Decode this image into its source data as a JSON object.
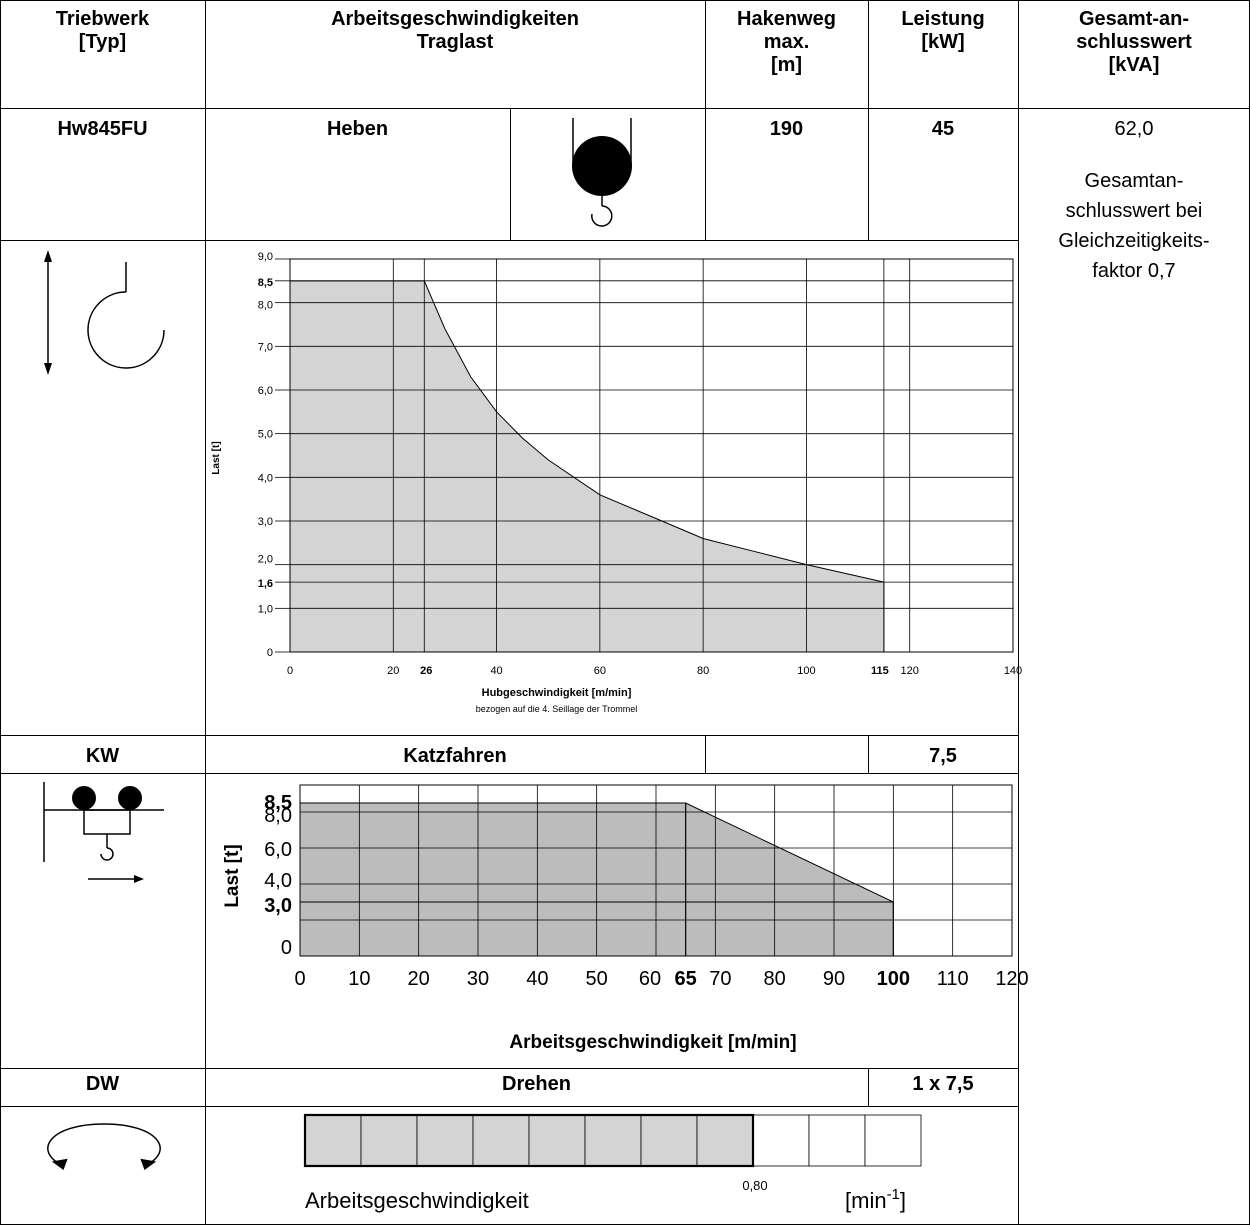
{
  "header": {
    "triebwerk": [
      "Triebwerk",
      "[Typ]"
    ],
    "arbeits": [
      "Arbeitsgeschwindigkeiten",
      "Traglast"
    ],
    "hakenweg": [
      "Hakenweg",
      "max.",
      "[m]"
    ],
    "leistung": [
      "Leistung",
      "[kW]"
    ],
    "gesamt": [
      "Gesamt-an-",
      "schlusswert",
      "[kVA]"
    ]
  },
  "hw": {
    "type": "Hw845FU",
    "label": "Heben",
    "hakenweg": "190",
    "leistung": "45",
    "gesamt_value": "62,0",
    "gesamt_note": [
      "Gesamtan-",
      "schlusswert bei",
      "Gleichzeitigkeits-",
      "faktor 0,7"
    ]
  },
  "kw": {
    "type": "KW",
    "label": "Katzfahren",
    "hakenweg": "",
    "leistung": "7,5"
  },
  "dw": {
    "type": "DW",
    "label": "Drehen",
    "leistung": "1 x 7,5"
  },
  "chart_data": [
    {
      "type": "area",
      "title": "",
      "xlabel": "Hubgeschwindigkeit [m/min]",
      "xlabel_sub": "bezogen auf die 4. Seillage der Trommel",
      "ylabel": "Last [t]",
      "xlim": [
        0,
        140
      ],
      "ylim": [
        0,
        9
      ],
      "x_ticks": [
        "0",
        "20",
        "26",
        "40",
        "60",
        "80",
        "100",
        "115",
        "120",
        "140"
      ],
      "y_ticks": [
        "0",
        "1,0",
        "1,6",
        "2,0",
        "3,0",
        "4,0",
        "5,0",
        "6,0",
        "7,0",
        "8,0",
        "8,5",
        "9,0"
      ],
      "x_ticks_bold": [
        "26",
        "115"
      ],
      "y_ticks_bold": [
        "8,5",
        "1,6"
      ],
      "series": [
        {
          "x": [
            0,
            26,
            30,
            35,
            40,
            45,
            50,
            60,
            70,
            80,
            90,
            100,
            115
          ],
          "y": [
            8.5,
            8.5,
            7.4,
            6.3,
            5.5,
            4.9,
            4.4,
            3.6,
            3.1,
            2.6,
            2.3,
            2.0,
            1.6
          ]
        }
      ],
      "grid": true
    },
    {
      "type": "area",
      "title": "",
      "xlabel": "Arbeitsgeschwindigkeit [m/min]",
      "ylabel": "Last [t]",
      "xlim": [
        0,
        120
      ],
      "ylim": [
        0,
        9.5
      ],
      "x_ticks": [
        "0",
        "10",
        "20",
        "30",
        "40",
        "50",
        "60",
        "65",
        "70",
        "80",
        "90",
        "100",
        "110",
        "120"
      ],
      "y_ticks": [
        "0",
        "3,0",
        "4,0",
        "6,0",
        "8,0",
        "8,5"
      ],
      "x_ticks_bold": [
        "65",
        "100"
      ],
      "y_ticks_bold": [
        "3,0",
        "8,5"
      ],
      "series": [
        {
          "x": [
            0,
            65,
            100
          ],
          "y": [
            8.5,
            8.5,
            3.0
          ]
        }
      ],
      "grid": true
    },
    {
      "type": "bar",
      "xlabel": "Arbeitsgeschwindigkeit",
      "unit_base": "[min",
      "unit_exp": "-1",
      "unit_close": "]",
      "value_label": "0,80",
      "value": 0.8,
      "max": 1.1,
      "segments": 11
    }
  ],
  "colors": {
    "fill": "#d4d4d4",
    "fill_dark": "#bcbcbc"
  }
}
